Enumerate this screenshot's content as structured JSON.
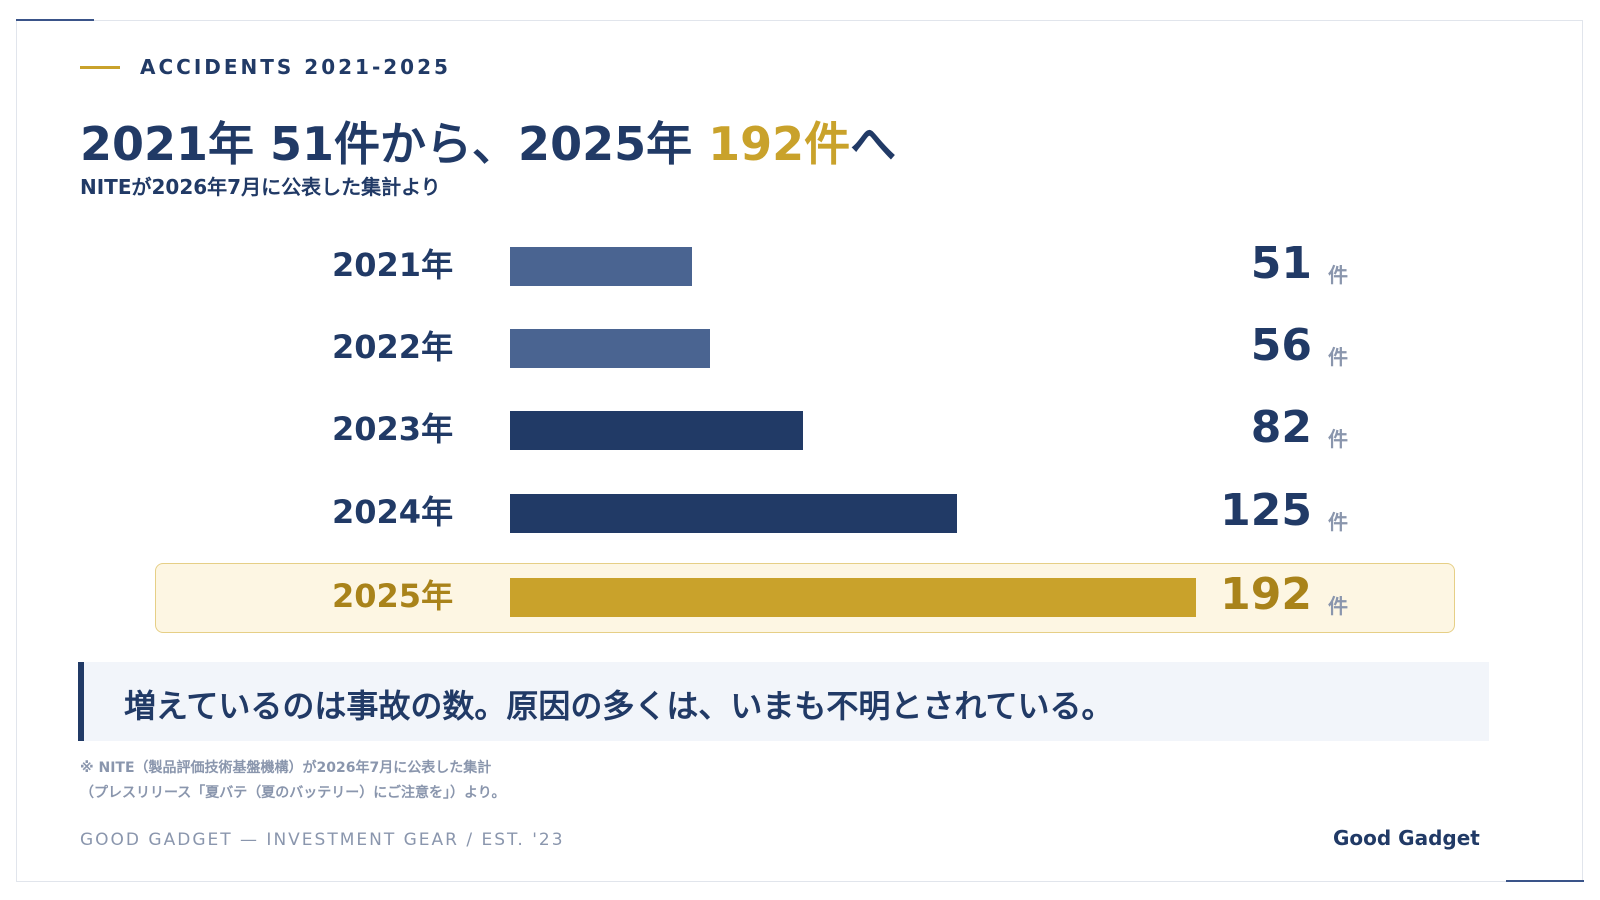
{
  "eyebrow": "ACCIDENTS 2021-2025",
  "title": {
    "part1": "2021年 51件から、2025年 ",
    "accent": "192件",
    "part2": "へ"
  },
  "subtitle": "NITEが2026年7月に公表した集計より",
  "chart_data": {
    "type": "bar",
    "orientation": "horizontal",
    "categories": [
      "2021年",
      "2022年",
      "2023年",
      "2024年",
      "2025年"
    ],
    "values": [
      51,
      56,
      82,
      125,
      192
    ],
    "value_labels": [
      "51",
      "56",
      "82",
      "125",
      "192"
    ],
    "unit": "件",
    "highlight_index": 4,
    "colors": {
      "light": "#4a6491",
      "dark": "#213a66",
      "highlight": "#c9a22b",
      "highlight_bg": "#fdf6e3"
    },
    "bar_colors": [
      "light",
      "light",
      "dark",
      "dark",
      "highlight"
    ]
  },
  "callout": "増えているのは事故の数。原因の多くは、いまも不明とされている。",
  "notes": [
    "※ NITE（製品評価技術基盤機構）が2026年7月に公表した集計",
    "（プレスリリース「夏バテ（夏のバッテリー）にご注意を」）より。"
  ],
  "footer": "GOOD GADGET — INVESTMENT GEAR / EST. '23",
  "brand": "Good Gadget"
}
